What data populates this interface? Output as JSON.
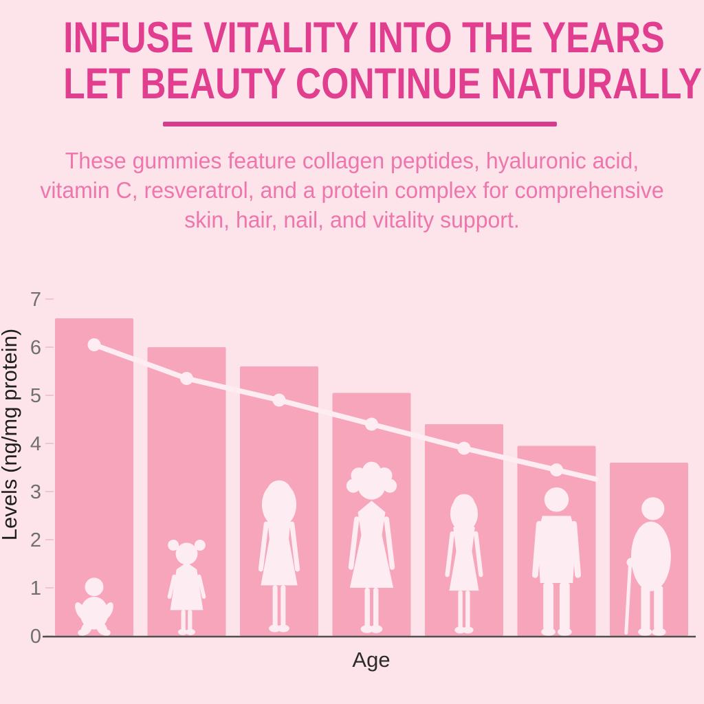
{
  "page": {
    "background_color": "#fce4ea",
    "kind": "product infographic with age-decline chart"
  },
  "header": {
    "title_line1": "INFUSE VITALITY INTO THE YEARS",
    "title_line2": "LET BEAUTY CONTINUE NATURALLY",
    "title_color": "#e23e8f",
    "divider_color": "#d63c8e",
    "subtitle": "These gummies feature collagen peptides, hyaluronic acid, vitamin C, resveratrol, and a protein complex for comprehensive skin, hair, nail, and vitality support.",
    "subtitle_color": "#ef76ad"
  },
  "chart_data": {
    "type": "bar",
    "title": "",
    "xlabel": "Age",
    "ylabel": "Levels (ng/mg protein)",
    "ylim": [
      0,
      7
    ],
    "yticks": [
      0,
      1,
      2,
      3,
      4,
      5,
      6,
      7
    ],
    "grid": false,
    "legend_position": "none",
    "categories": [
      "infant",
      "toddler girl",
      "young woman",
      "adult woman",
      "middle-aged woman",
      "adult man",
      "elderly man with cane"
    ],
    "series": [
      {
        "name": "Collagen level by age (bars)",
        "type": "bar",
        "color": "#f6a5bb",
        "values": [
          6.6,
          6.0,
          5.6,
          5.05,
          4.4,
          3.95,
          3.6
        ]
      },
      {
        "name": "Decline trend (line with markers)",
        "type": "line",
        "color": "#fdedf2",
        "category_indexes": [
          0,
          1,
          2,
          3,
          4,
          5
        ],
        "values": [
          6.05,
          5.35,
          4.9,
          4.4,
          3.9,
          3.45
        ]
      }
    ],
    "colors": {
      "bar_fill": "#f6a5bb",
      "line_and_markers": "#fdedf2",
      "silhouettes": "#fdedf2",
      "tick_label": "#6f6f6f",
      "axis_label": "#2b2b2b",
      "axis_line": "#4f4f4f"
    }
  }
}
